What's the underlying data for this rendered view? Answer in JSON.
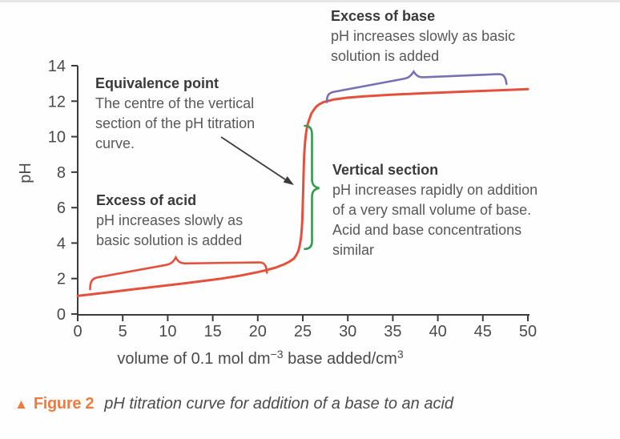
{
  "figure": {
    "marker": "▲",
    "label": "Figure 2",
    "caption": "pH titration curve for addition of a base to an acid"
  },
  "colors": {
    "curve": "#e5503c",
    "acid_brace": "#e5503c",
    "base_brace": "#7671b3",
    "vertical_brace": "#339a4e",
    "axis": "#3b3b3b",
    "arrow": "#3b3b3b",
    "caption_accent": "#ef7c3e"
  },
  "chart_data": {
    "type": "line",
    "xlabel": "volume of 0.1 mol dm−3 base added/cm3",
    "xlabel_parts": {
      "pre": "volume of 0.1 mol dm",
      "sup1": "−3",
      "mid": " base added/cm",
      "sup2": "3"
    },
    "ylabel": "pH",
    "xlim": [
      0,
      50
    ],
    "ylim": [
      0,
      14
    ],
    "grid": false,
    "x_ticks": [
      0,
      5,
      10,
      15,
      20,
      25,
      30,
      35,
      40,
      45,
      50
    ],
    "y_ticks": [
      0,
      2,
      4,
      6,
      8,
      10,
      12,
      14
    ],
    "series": [
      {
        "name": "pH titration curve",
        "color": "#e5503c",
        "points": [
          [
            0,
            1.02
          ],
          [
            2,
            1.14
          ],
          [
            4,
            1.26
          ],
          [
            6,
            1.38
          ],
          [
            8,
            1.5
          ],
          [
            10,
            1.62
          ],
          [
            12,
            1.74
          ],
          [
            14,
            1.87
          ],
          [
            16,
            2.0
          ],
          [
            18,
            2.16
          ],
          [
            20,
            2.36
          ],
          [
            21,
            2.48
          ],
          [
            22,
            2.62
          ],
          [
            23,
            2.82
          ],
          [
            23.5,
            2.95
          ],
          [
            24,
            3.12
          ],
          [
            24.25,
            3.3
          ],
          [
            24.5,
            3.55
          ],
          [
            24.65,
            3.85
          ],
          [
            24.8,
            4.3
          ],
          [
            24.88,
            4.75
          ],
          [
            24.95,
            5.3
          ],
          [
            25.0,
            6.2
          ],
          [
            25.05,
            7.2
          ],
          [
            25.1,
            8.1
          ],
          [
            25.15,
            8.9
          ],
          [
            25.22,
            9.5
          ],
          [
            25.3,
            9.95
          ],
          [
            25.4,
            10.35
          ],
          [
            25.55,
            10.7
          ],
          [
            25.7,
            10.95
          ],
          [
            25.95,
            11.3
          ],
          [
            26.2,
            11.5
          ],
          [
            26.5,
            11.7
          ],
          [
            26.85,
            11.83
          ],
          [
            27.3,
            11.95
          ],
          [
            28.5,
            12.1
          ],
          [
            30,
            12.2
          ],
          [
            32,
            12.28
          ],
          [
            35,
            12.37
          ],
          [
            38,
            12.44
          ],
          [
            41,
            12.5
          ],
          [
            44,
            12.56
          ],
          [
            47,
            12.62
          ],
          [
            50,
            12.68
          ]
        ]
      }
    ],
    "annotations": [
      {
        "id": "excess-of-base",
        "title": "Excess of base",
        "body": "pH increases slowly as basic\nsolution is added",
        "brace_color": "#7671b3",
        "brace_range_volume": [
          27.7,
          47.8
        ]
      },
      {
        "id": "equivalence-point",
        "title": "Equivalence point",
        "body": "The centre of the vertical\nsection of the pH titration\ncurve.",
        "arrow_to_volume_ph": [
          25,
          7.3
        ]
      },
      {
        "id": "vertical-section",
        "title": "Vertical section",
        "body": "pH increases rapidly on addition\nof a very small volume of base.\nAcid and base concentrations\nsimilar",
        "brace_color": "#339a4e",
        "brace_range_ph": [
          3.7,
          10.6
        ]
      },
      {
        "id": "excess-of-acid",
        "title": "Excess of acid",
        "body": "pH increases slowly as\nbasic solution is added",
        "brace_color": "#e5503c",
        "brace_range_volume": [
          1.4,
          21.0
        ]
      }
    ]
  }
}
